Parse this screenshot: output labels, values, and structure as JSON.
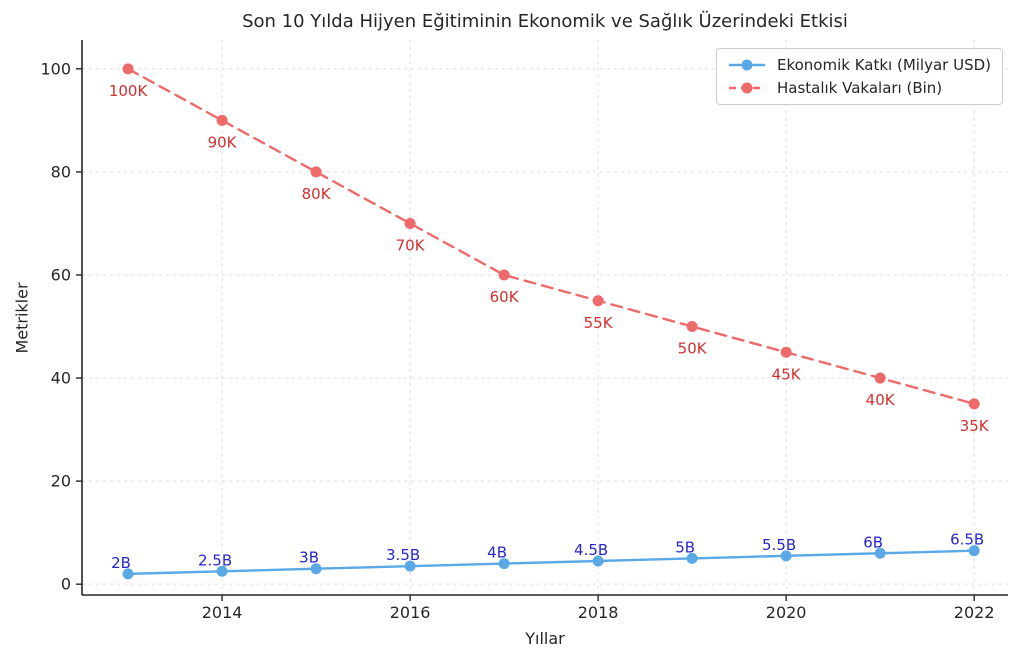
{
  "figure": {
    "title": "Son 10 Yılda Hijyen Eğitiminin Ekonomik ve Sağlık Üzerindeki Etkisi",
    "xlabel": "Yıllar",
    "ylabel": "Metrikler"
  },
  "legend": {
    "items": [
      {
        "label": "Ekonomik Katkı (Milyar USD)",
        "color": "#5aa9e6",
        "line_style": "solid"
      },
      {
        "label": "Hastalık Vakaları (Bin)",
        "color": "#ee6a6a",
        "line_style": "dashed"
      }
    ]
  },
  "chart_data": {
    "type": "line",
    "title": "Son 10 Yılda Hijyen Eğitiminin Ekonomik ve Sağlık Üzerindeki Etkisi",
    "xlabel": "Yıllar",
    "ylabel": "Metrikler",
    "x": [
      2013,
      2014,
      2015,
      2016,
      2017,
      2018,
      2019,
      2020,
      2021,
      2022
    ],
    "series": [
      {
        "name": "Ekonomik Katkı (Milyar USD)",
        "values": [
          2,
          2.5,
          3,
          3.5,
          4,
          4.5,
          5,
          5.5,
          6,
          6.5
        ],
        "point_labels": [
          "2B",
          "2.5B",
          "3B",
          "3.5B",
          "4B",
          "4.5B",
          "5B",
          "5.5B",
          "6B",
          "6.5B"
        ],
        "color": "#5aa9e6",
        "label_color": "#2626cc",
        "line_style": "solid"
      },
      {
        "name": "Hastalık Vakaları (Bin)",
        "values": [
          100,
          90,
          80,
          70,
          60,
          55,
          50,
          45,
          40,
          35
        ],
        "point_labels": [
          "100K",
          "90K",
          "80K",
          "70K",
          "60K",
          "55K",
          "50K",
          "45K",
          "40K",
          "35K"
        ],
        "color": "#ee6a6a",
        "label_color": "#d32f2f",
        "line_style": "dashed"
      }
    ],
    "xticks": [
      2014,
      2016,
      2018,
      2020,
      2022
    ],
    "yticks": [
      0,
      20,
      40,
      60,
      80,
      100
    ],
    "xlim": [
      2012.51,
      2022.36
    ],
    "ylim": [
      -2.1,
      105.6
    ],
    "grid": true,
    "legend_position": "upper right",
    "axis_color": "#262626",
    "grid_color": "#dcdcdc",
    "tick_label_color": "#262626"
  }
}
